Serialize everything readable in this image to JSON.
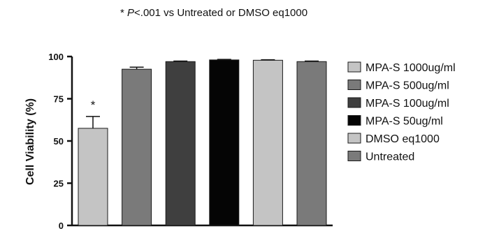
{
  "chart_data": {
    "type": "bar",
    "note_prefix": "* ",
    "note_italic": "P",
    "note_rest": "<.001 vs Untreated or DMSO eq1000",
    "ylabel": "Cell Viability (%)",
    "xlabel": "",
    "ylim": [
      0,
      100
    ],
    "yticks": [
      "0",
      "25",
      "50",
      "75",
      "100"
    ],
    "grid": false,
    "legend_position": "right",
    "series": [
      {
        "name": "MPA-S 1000ug/ml",
        "value": 57.5,
        "error": 7,
        "color": "#c4c4c4",
        "significance": "*"
      },
      {
        "name": "MPA-S 500ug/ml",
        "value": 92.5,
        "error": 1.2,
        "color": "#7a7a7a",
        "significance": ""
      },
      {
        "name": "MPA-S 100ug/ml",
        "value": 97,
        "error": 0.3,
        "color": "#3f3f3f",
        "significance": ""
      },
      {
        "name": "MPA-S 50ug/ml",
        "value": 98,
        "error": 0.3,
        "color": "#050505",
        "significance": ""
      },
      {
        "name": "DMSO eq1000",
        "value": 97.8,
        "error": 0.3,
        "color": "#c4c4c4",
        "significance": ""
      },
      {
        "name": "Untreated",
        "value": 97,
        "error": 0.3,
        "color": "#7a7a7a",
        "significance": ""
      }
    ]
  }
}
